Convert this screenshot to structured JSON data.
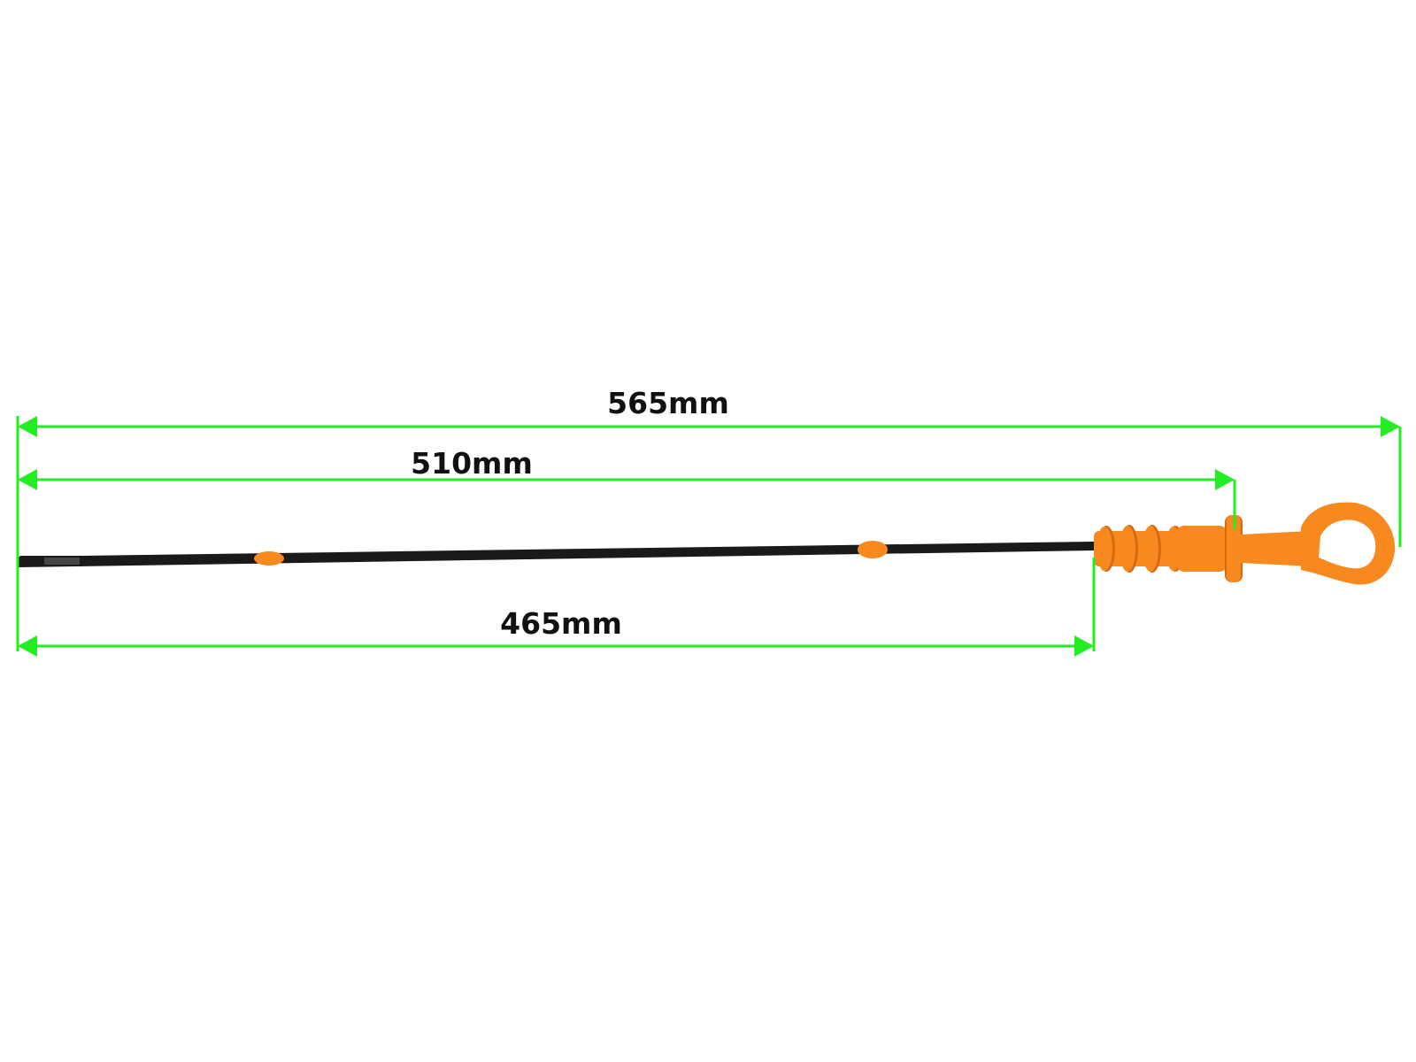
{
  "dimensions": [
    {
      "id": "overall",
      "label": "565mm",
      "value_mm": 565
    },
    {
      "id": "to-collar",
      "label": "510mm",
      "value_mm": 510
    },
    {
      "id": "to-handle",
      "label": "465mm",
      "value_mm": 465
    }
  ],
  "colors": {
    "background": "#ffffff",
    "dimension_line": "#22ee22",
    "rod": "#1a1a1a",
    "handle": "#f7891f",
    "handle_shadow": "#d9690c",
    "label": "#111111"
  }
}
